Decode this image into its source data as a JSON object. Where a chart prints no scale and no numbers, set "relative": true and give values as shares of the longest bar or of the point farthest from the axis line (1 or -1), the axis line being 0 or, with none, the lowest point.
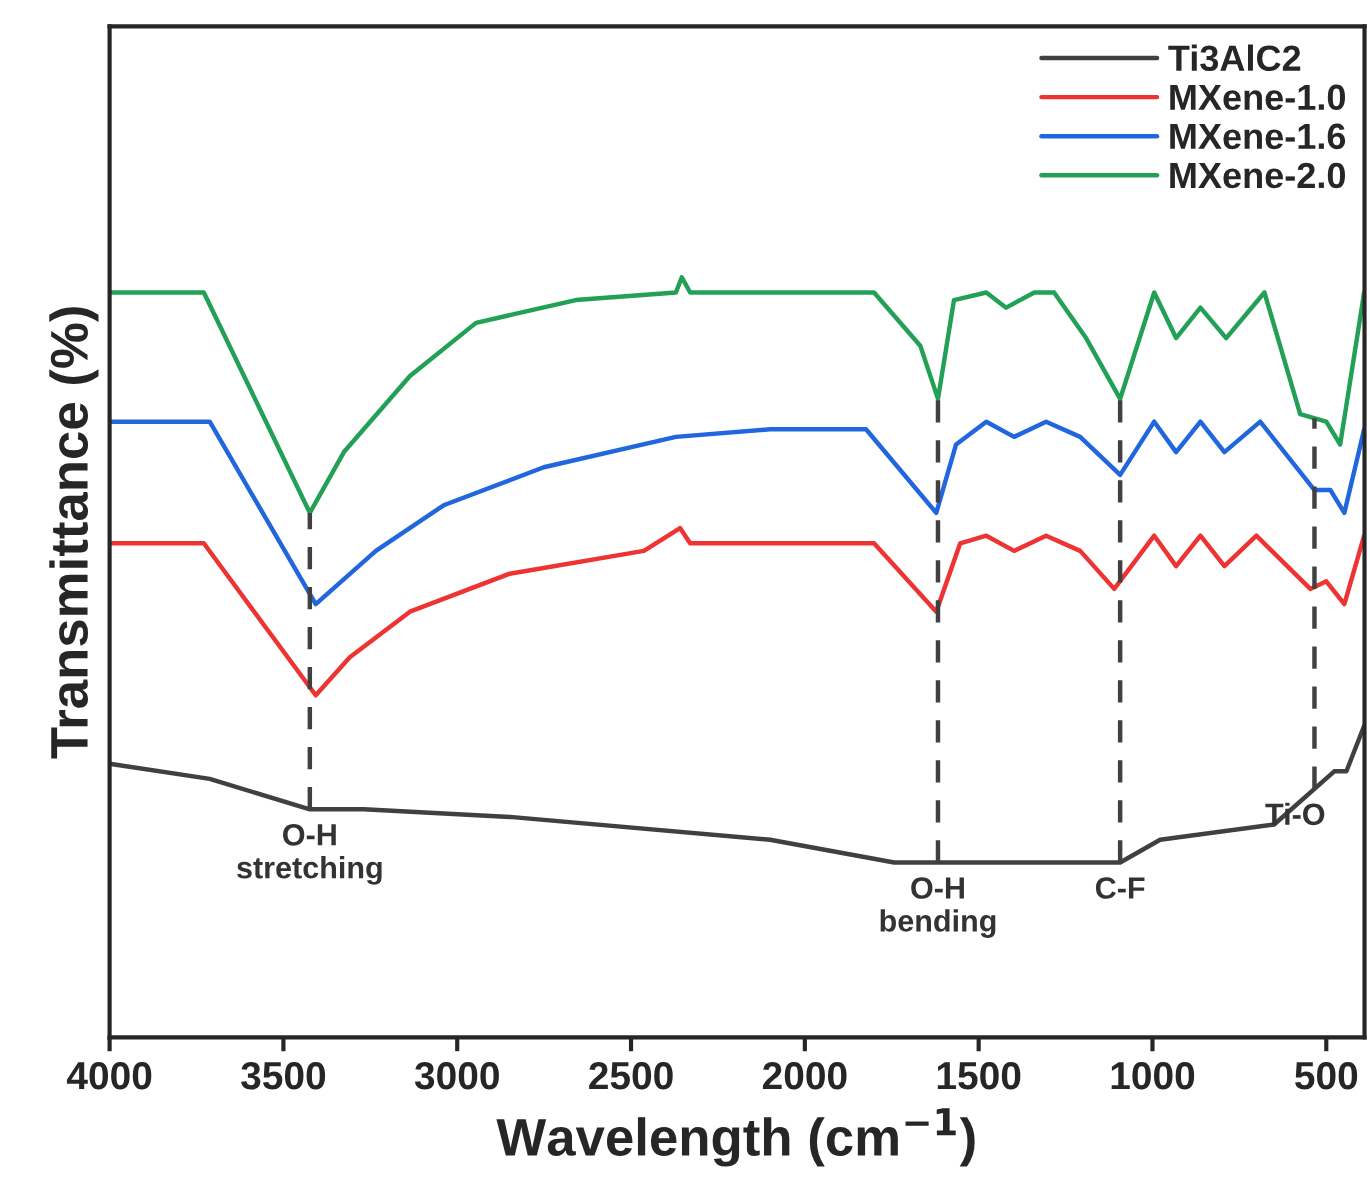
{
  "chart_data": {
    "type": "line",
    "relative": true,
    "xlabel": "Wavelength (cm$^{−1}$)",
    "ylabel": "Transmittance (%)",
    "xlim": [
      4000,
      390
    ],
    "xticks": [
      4000,
      3500,
      3000,
      2500,
      2000,
      1500,
      1000,
      500
    ],
    "tick_labels": "x",
    "legend": "top right",
    "grid": false,
    "marker": "none",
    "line_style": "solid",
    "series": [
      {
        "name": "Ti3AlC2",
        "color": "#404040",
        "x": [
          4000,
          3712,
          3424,
          3269,
          2849,
          2100,
          1743,
          1611,
          1093,
          978,
          650,
          477,
          442,
          391
        ],
        "values": [
          0.36,
          0.34,
          0.3,
          0.3,
          0.29,
          0.26,
          0.23,
          0.23,
          0.23,
          0.26,
          0.28,
          0.35,
          0.35,
          0.41
        ]
      },
      {
        "name": "MXene-1.0",
        "color": "#ee3333",
        "x": [
          4000,
          3729,
          3407,
          3309,
          3136,
          2849,
          2463,
          2359,
          2330,
          2100,
          1801,
          1622,
          1553,
          1478,
          1398,
          1306,
          1208,
          1110,
          995,
          932,
          862,
          793,
          701,
          546,
          500,
          448,
          391
        ],
        "values": [
          0.65,
          0.65,
          0.45,
          0.5,
          0.56,
          0.61,
          0.64,
          0.67,
          0.65,
          0.65,
          0.65,
          0.56,
          0.65,
          0.66,
          0.64,
          0.66,
          0.64,
          0.59,
          0.66,
          0.62,
          0.66,
          0.62,
          0.66,
          0.59,
          0.6,
          0.57,
          0.66
        ]
      },
      {
        "name": "MXene-1.6",
        "color": "#2266dd",
        "x": [
          4000,
          3712,
          3407,
          3234,
          3039,
          2751,
          2371,
          2100,
          1824,
          1622,
          1565,
          1478,
          1398,
          1306,
          1208,
          1093,
          995,
          932,
          862,
          793,
          690,
          534,
          488,
          448,
          391
        ],
        "values": [
          0.81,
          0.81,
          0.57,
          0.64,
          0.7,
          0.75,
          0.79,
          0.8,
          0.8,
          0.69,
          0.78,
          0.81,
          0.79,
          0.81,
          0.79,
          0.74,
          0.81,
          0.77,
          0.81,
          0.77,
          0.81,
          0.72,
          0.72,
          0.69,
          0.8
        ]
      },
      {
        "name": "MXene-2.0",
        "color": "#22a055",
        "x": [
          4000,
          3729,
          3424,
          3326,
          3136,
          2946,
          2659,
          2371,
          2354,
          2330,
          2100,
          1801,
          1668,
          1617,
          1571,
          1478,
          1421,
          1340,
          1283,
          1191,
          1093,
          995,
          932,
          862,
          788,
          678,
          575,
          500,
          460,
          391
        ],
        "values": [
          0.98,
          0.98,
          0.69,
          0.77,
          0.87,
          0.94,
          0.97,
          0.98,
          1.0,
          0.98,
          0.98,
          0.98,
          0.91,
          0.84,
          0.97,
          0.98,
          0.96,
          0.98,
          0.98,
          0.92,
          0.84,
          0.98,
          0.92,
          0.96,
          0.92,
          0.98,
          0.82,
          0.81,
          0.78,
          0.98
        ]
      }
    ],
    "ref_lines": [
      {
        "axis": "x",
        "value": 3424,
        "label": "O-H\nstretching",
        "line_style": "dashed",
        "color": "#404040"
      },
      {
        "axis": "x",
        "value": 1617,
        "label": "O-H\nbending",
        "line_style": "dashed",
        "color": "#404040"
      },
      {
        "axis": "x",
        "value": 1093,
        "label": "C-F",
        "line_style": "dashed",
        "color": "#404040"
      },
      {
        "axis": "x",
        "value": 534,
        "label": "Ti-O",
        "line_style": "dashed",
        "color": "#404040"
      }
    ]
  }
}
